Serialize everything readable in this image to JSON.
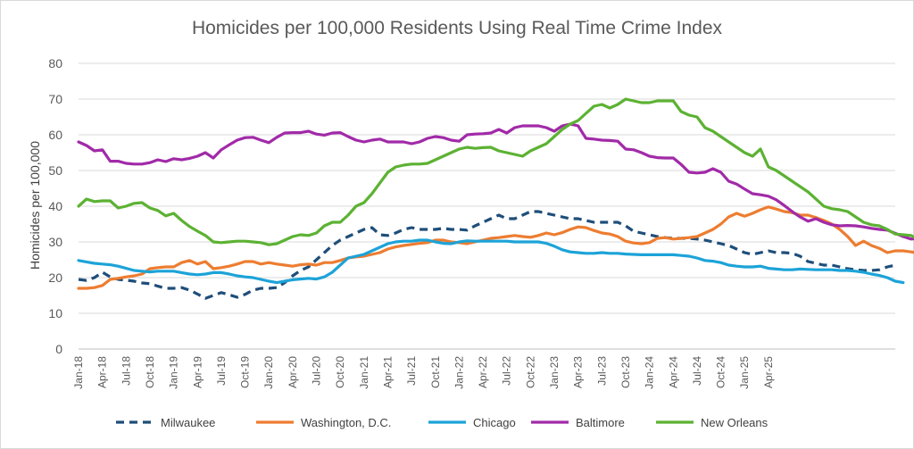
{
  "chart_data": {
    "type": "line",
    "title": "Homicides per 100,000 Residents Using Real Time Crime Index",
    "xlabel": "",
    "ylabel": "Homicides per 100,000",
    "ylim": [
      0,
      80
    ],
    "yticks": [
      0,
      10,
      20,
      30,
      40,
      50,
      60,
      70,
      80
    ],
    "grid": "horizontal",
    "legend_position": "bottom",
    "x_tick_labels": [
      "Jan-18",
      "Apr-18",
      "Jul-18",
      "Oct-18",
      "Jan-19",
      "Apr-19",
      "Jul-19",
      "Oct-19",
      "Jan-20",
      "Apr-20",
      "Jul-20",
      "Oct-20",
      "Jan-21",
      "Apr-21",
      "Jul-21",
      "Oct-21",
      "Jan-22",
      "Apr-22",
      "Jul-22",
      "Oct-22",
      "Jan-23",
      "Apr-23",
      "Jul-23",
      "Oct-23",
      "Jan-24",
      "Apr-24",
      "Jul-24",
      "Oct-24",
      "Jan-25",
      "Apr-25"
    ],
    "x_tick_step_months": 3,
    "x_start": "Jan-18",
    "series": [
      {
        "name": "Milwaukee",
        "color": "#1f4e79",
        "dash": "dashed",
        "values": [
          19.5,
          19.2,
          20,
          21.5,
          20.2,
          19.5,
          19.3,
          19,
          18.5,
          18.3,
          17.6,
          17,
          17,
          17.2,
          16.5,
          15.4,
          14.2,
          15,
          15.8,
          15.2,
          14.5,
          15.3,
          16.5,
          17,
          17,
          17.2,
          18.6,
          20.5,
          22,
          23,
          25,
          27,
          29,
          30.5,
          31.5,
          32.5,
          33.5,
          34,
          32,
          31.8,
          32.5,
          33.5,
          34,
          33.5,
          33.5,
          33.5,
          33.8,
          33.5,
          33.5,
          33.3,
          34.5,
          35.5,
          36.5,
          37.5,
          36.5,
          36.5,
          37.5,
          38.5,
          38.5,
          38,
          37.5,
          37,
          36.5,
          36.5,
          36,
          35.5,
          35.5,
          35.5,
          35.5,
          34.5,
          33,
          32.5,
          32,
          31.5,
          31.2,
          31,
          31,
          31,
          30.8,
          30.5,
          30,
          29.5,
          29,
          28,
          27,
          26.5,
          27,
          27.5,
          27,
          27,
          26.8,
          26,
          24.5,
          24,
          23.5,
          23.5,
          23,
          22.5,
          22.2,
          22,
          22,
          22.2,
          23,
          23.5
        ]
      },
      {
        "name": "Washington, D.C.",
        "color": "#ed7d31",
        "values": [
          17,
          17,
          17.2,
          17.8,
          19.5,
          19.8,
          20.2,
          20.5,
          21,
          22.5,
          22.8,
          23,
          23,
          24.2,
          24.8,
          23.8,
          24.5,
          22.5,
          22.8,
          23.2,
          23.8,
          24.5,
          24.5,
          23.8,
          24.2,
          23.8,
          23.5,
          23.2,
          23.6,
          23.8,
          23.5,
          24.2,
          24.2,
          24.8,
          25.5,
          25.8,
          26,
          26.5,
          27,
          28,
          28.6,
          29,
          29.3,
          29.6,
          29.8,
          30.5,
          30.5,
          30,
          29.8,
          29.5,
          30,
          30.5,
          31,
          31.2,
          31.5,
          31.8,
          31.5,
          31.3,
          31.8,
          32.5,
          32,
          32.6,
          33.5,
          34.2,
          34,
          33.2,
          32.5,
          32.2,
          31.5,
          30.2,
          29.7,
          29.5,
          29.8,
          31,
          31.2,
          30.8,
          31,
          31.2,
          31.5,
          32.5,
          33.5,
          35,
          37,
          38,
          37.2,
          38,
          39,
          39.8,
          39.2,
          38.5,
          38.2,
          37.5,
          37.5,
          36.8,
          36,
          35,
          33.5,
          31.5,
          29,
          30.2,
          29,
          28.2,
          27,
          27.5,
          27.5,
          27.2,
          26.8,
          26.5,
          26.4,
          26.2
        ]
      },
      {
        "name": "Chicago",
        "color": "#1ca3d8",
        "values": [
          24.8,
          24.4,
          24,
          23.8,
          23.6,
          23.2,
          22.6,
          22,
          21.8,
          21.6,
          21.8,
          21.8,
          21.8,
          21.4,
          21,
          20.8,
          21,
          21.4,
          21.4,
          21,
          20.5,
          20.2,
          20,
          19.5,
          19,
          18.6,
          19,
          19.4,
          19.6,
          19.8,
          19.6,
          20.2,
          21.5,
          23.5,
          25.5,
          26,
          26.5,
          27.5,
          28.5,
          29.5,
          30,
          30.2,
          30.2,
          30.5,
          30.5,
          30,
          29.6,
          29.5,
          30,
          30.3,
          30.2,
          30.2,
          30.2,
          30.2,
          30.2,
          30,
          30,
          30,
          30,
          29.6,
          28.8,
          27.8,
          27.2,
          27,
          26.8,
          26.8,
          27,
          26.8,
          26.8,
          26.6,
          26.5,
          26.4,
          26.4,
          26.4,
          26.4,
          26.4,
          26.2,
          26,
          25.5,
          24.8,
          24.6,
          24.2,
          23.5,
          23.2,
          23,
          23,
          23.2,
          22.6,
          22.4,
          22.2,
          22.2,
          22.4,
          22.3,
          22.2,
          22.2,
          22.2,
          22,
          22,
          21.8,
          21.5,
          21,
          20.6,
          20,
          19,
          18.6
        ]
      },
      {
        "name": "Baltimore",
        "color": "#a12aa8",
        "values": [
          58,
          57,
          55.5,
          55.8,
          52.6,
          52.6,
          52,
          51.8,
          51.8,
          52.2,
          53,
          52.5,
          53.3,
          53,
          53.4,
          54,
          55,
          53.5,
          55.8,
          57.2,
          58.5,
          59.2,
          59.3,
          58.5,
          57.8,
          59.3,
          60.5,
          60.6,
          60.6,
          61,
          60.2,
          59.9,
          60.5,
          60.6,
          59.5,
          58.5,
          58,
          58.5,
          58.8,
          58,
          58,
          58,
          57.5,
          58,
          59,
          59.5,
          59.2,
          58.5,
          58.2,
          60,
          60.2,
          60.3,
          60.5,
          61.5,
          60.5,
          62,
          62.5,
          62.5,
          62.5,
          62,
          61,
          62.5,
          63,
          62.5,
          59,
          58.8,
          58.5,
          58.4,
          58.2,
          56,
          55.8,
          55,
          54,
          53.6,
          53.5,
          53.5,
          51.7,
          49.5,
          49.3,
          49.5,
          50.5,
          49.5,
          47,
          46.2,
          44.8,
          43.5,
          43.2,
          42.8,
          41.8,
          40.2,
          38.5,
          37,
          35.8,
          36.5,
          35.5,
          34.8,
          34.5,
          34.6,
          34.5,
          34.2,
          33.8,
          33.5,
          33.3,
          32.4,
          31.5,
          30.8,
          31,
          30.6
        ]
      },
      {
        "name": "New Orleans",
        "color": "#5cb233",
        "values": [
          40,
          42,
          41.3,
          41.5,
          41.5,
          39.5,
          40,
          40.8,
          41,
          39.5,
          38.8,
          37.3,
          38,
          36,
          34.3,
          33,
          31.8,
          30,
          29.8,
          30,
          30.2,
          30.2,
          30,
          29.8,
          29.2,
          29.5,
          30.5,
          31.5,
          32,
          31.8,
          32.5,
          34.5,
          35.5,
          35.5,
          37.5,
          40,
          41,
          43.5,
          46.5,
          49.5,
          51,
          51.5,
          51.8,
          51.8,
          52,
          53,
          54,
          55,
          56,
          56.5,
          56.2,
          56.4,
          56.5,
          55.5,
          55,
          54.5,
          54,
          55.5,
          56.5,
          57.5,
          59.5,
          61.5,
          63,
          64,
          66,
          68,
          68.5,
          67.5,
          68.5,
          70,
          69.5,
          69,
          69,
          69.5,
          69.5,
          69.5,
          66.5,
          65.5,
          65,
          62,
          61,
          59.5,
          58,
          56.5,
          55,
          54,
          56,
          51,
          50,
          48.5,
          47,
          45.5,
          44,
          42,
          40,
          39.3,
          39,
          38.5,
          37,
          35.5,
          34.8,
          34.5,
          33.5,
          32.2,
          32,
          31.8,
          30.5,
          29.5,
          28.5,
          27.8,
          28.6,
          27.8
        ]
      }
    ]
  }
}
